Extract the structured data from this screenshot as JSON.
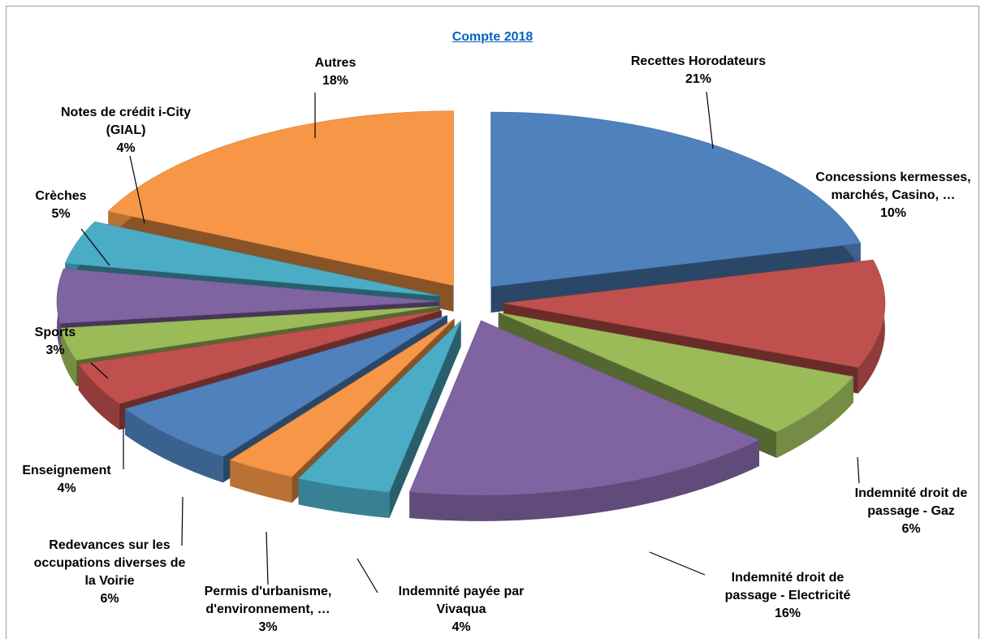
{
  "chart_data": {
    "type": "pie",
    "title": "Compte 2018",
    "start_angle_deg": 0,
    "direction": "clockwise",
    "slices": [
      {
        "label": [
          "Recettes Horodateurs"
        ],
        "pct": "21%",
        "value": 21,
        "color": "#4f81bd"
      },
      {
        "label": [
          "Concessions kermesses,",
          "marchés, Casino, …"
        ],
        "pct": "10%",
        "value": 10,
        "color": "#c0504d"
      },
      {
        "label": [
          "Indemnité droit de",
          "passage - Gaz"
        ],
        "pct": "6%",
        "value": 6,
        "color": "#9bbb59"
      },
      {
        "label": [
          "Indemnité droit de",
          "passage - Electricité"
        ],
        "pct": "16%",
        "value": 16,
        "color": "#8064a2"
      },
      {
        "label": [
          "Indemnité payée par",
          "Vivaqua"
        ],
        "pct": "4%",
        "value": 4,
        "color": "#4bacc6"
      },
      {
        "label": [
          "Permis d'urbanisme,",
          "d'environnement, …"
        ],
        "pct": "3%",
        "value": 3,
        "color": "#f79646"
      },
      {
        "label": [
          "Redevances sur les",
          "occupations diverses de",
          "la Voirie"
        ],
        "pct": "6%",
        "value": 6,
        "color": "#4f81bd"
      },
      {
        "label": [
          "Enseignement"
        ],
        "pct": "4%",
        "value": 4,
        "color": "#c0504d"
      },
      {
        "label": [
          "Sports"
        ],
        "pct": "3%",
        "value": 3,
        "color": "#9bbb59"
      },
      {
        "label": [
          "Crèches"
        ],
        "pct": "5%",
        "value": 5,
        "color": "#8064a2"
      },
      {
        "label": [
          "Notes de crédit i-City",
          "(GIAL)"
        ],
        "pct": "4%",
        "value": 4,
        "color": "#4bacc6"
      },
      {
        "label": [
          "Autres"
        ],
        "pct": "18%",
        "value": 18,
        "color": "#f79646"
      }
    ]
  }
}
